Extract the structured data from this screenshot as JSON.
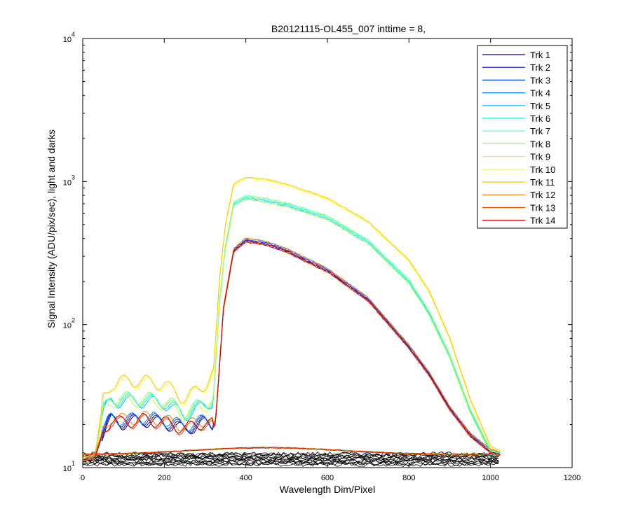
{
  "chart_data": {
    "type": "line",
    "title": "B20121115-OL455_007 inttime = 8,",
    "xlabel": "Wavelength Dim/Pixel",
    "ylabel": "Signal Intensity (ADU/pix/sec), light and darks",
    "xlim": [
      0,
      1200
    ],
    "ylim": [
      10,
      10000
    ],
    "yscale": "log",
    "xticks": [
      "0",
      "200",
      "400",
      "600",
      "800",
      "1000",
      "1200"
    ],
    "yticks": [
      {
        "base": "10",
        "exp": "1",
        "value": 10
      },
      {
        "base": "10",
        "exp": "2",
        "value": 100
      },
      {
        "base": "10",
        "exp": "3",
        "value": 1000
      },
      {
        "base": "10",
        "exp": "4",
        "value": 10000
      }
    ],
    "legend_position": "top-right",
    "grid": false,
    "series": [
      {
        "name": "Trk 1",
        "color": "#00008f",
        "group": "low"
      },
      {
        "name": "Trk 2",
        "color": "#0000cf",
        "group": "low"
      },
      {
        "name": "Trk 3",
        "color": "#0040ff",
        "group": "low"
      },
      {
        "name": "Trk 4",
        "color": "#0080ff",
        "group": "low"
      },
      {
        "name": "Trk 5",
        "color": "#00bfff",
        "group": "mid"
      },
      {
        "name": "Trk 6",
        "color": "#00efff",
        "group": "mid"
      },
      {
        "name": "Trk 7",
        "color": "#40ffbf",
        "group": "mid"
      },
      {
        "name": "Trk 8",
        "color": "#80ff80",
        "group": "mid"
      },
      {
        "name": "Trk 9",
        "color": "#bfff40",
        "group": "mid"
      },
      {
        "name": "Trk 10",
        "color": "#ffff00",
        "group": "high"
      },
      {
        "name": "Trk 11",
        "color": "#ffbf00",
        "group": "high"
      },
      {
        "name": "Trk 12",
        "color": "#ff8000",
        "group": "low"
      },
      {
        "name": "Trk 13",
        "color": "#ff4000",
        "group": "low"
      },
      {
        "name": "Trk 14",
        "color": "#cf0000",
        "group": "low"
      }
    ],
    "profiles": {
      "low": {
        "pre": [
          [
            0,
            11.5
          ],
          [
            30,
            12
          ],
          [
            50,
            18
          ],
          [
            70,
            22
          ],
          [
            100,
            21
          ],
          [
            150,
            22
          ],
          [
            200,
            21
          ],
          [
            250,
            19
          ],
          [
            300,
            21
          ],
          [
            325,
            20
          ],
          [
            335,
            50
          ],
          [
            345,
            130
          ],
          [
            370,
            330
          ],
          [
            400,
            390
          ],
          [
            450,
            370
          ],
          [
            500,
            330
          ],
          [
            600,
            240
          ],
          [
            700,
            150
          ],
          [
            800,
            70
          ],
          [
            850,
            45
          ],
          [
            900,
            26
          ],
          [
            950,
            17
          ],
          [
            1000,
            13
          ],
          [
            1024,
            12.5
          ]
        ]
      },
      "mid": {
        "pre": [
          [
            0,
            11.5
          ],
          [
            30,
            12
          ],
          [
            50,
            25
          ],
          [
            70,
            30
          ],
          [
            100,
            30
          ],
          [
            150,
            30
          ],
          [
            200,
            29
          ],
          [
            250,
            24
          ],
          [
            300,
            28
          ],
          [
            320,
            30
          ],
          [
            335,
            140
          ],
          [
            350,
            350
          ],
          [
            370,
            700
          ],
          [
            400,
            780
          ],
          [
            450,
            740
          ],
          [
            500,
            690
          ],
          [
            600,
            560
          ],
          [
            700,
            380
          ],
          [
            800,
            200
          ],
          [
            850,
            120
          ],
          [
            900,
            60
          ],
          [
            950,
            25
          ],
          [
            1000,
            13
          ],
          [
            1024,
            12.5
          ]
        ]
      },
      "high": {
        "pre": [
          [
            0,
            11.5
          ],
          [
            30,
            12
          ],
          [
            50,
            30
          ],
          [
            70,
            38
          ],
          [
            100,
            40
          ],
          [
            150,
            40
          ],
          [
            200,
            38
          ],
          [
            250,
            30
          ],
          [
            300,
            38
          ],
          [
            320,
            45
          ],
          [
            335,
            200
          ],
          [
            350,
            500
          ],
          [
            370,
            950
          ],
          [
            400,
            1060
          ],
          [
            450,
            1030
          ],
          [
            500,
            950
          ],
          [
            600,
            760
          ],
          [
            700,
            520
          ],
          [
            800,
            280
          ],
          [
            850,
            170
          ],
          [
            900,
            80
          ],
          [
            950,
            30
          ],
          [
            1000,
            14
          ],
          [
            1024,
            13
          ]
        ]
      }
    },
    "dark_level": [
      10.5,
      12.5
    ]
  }
}
